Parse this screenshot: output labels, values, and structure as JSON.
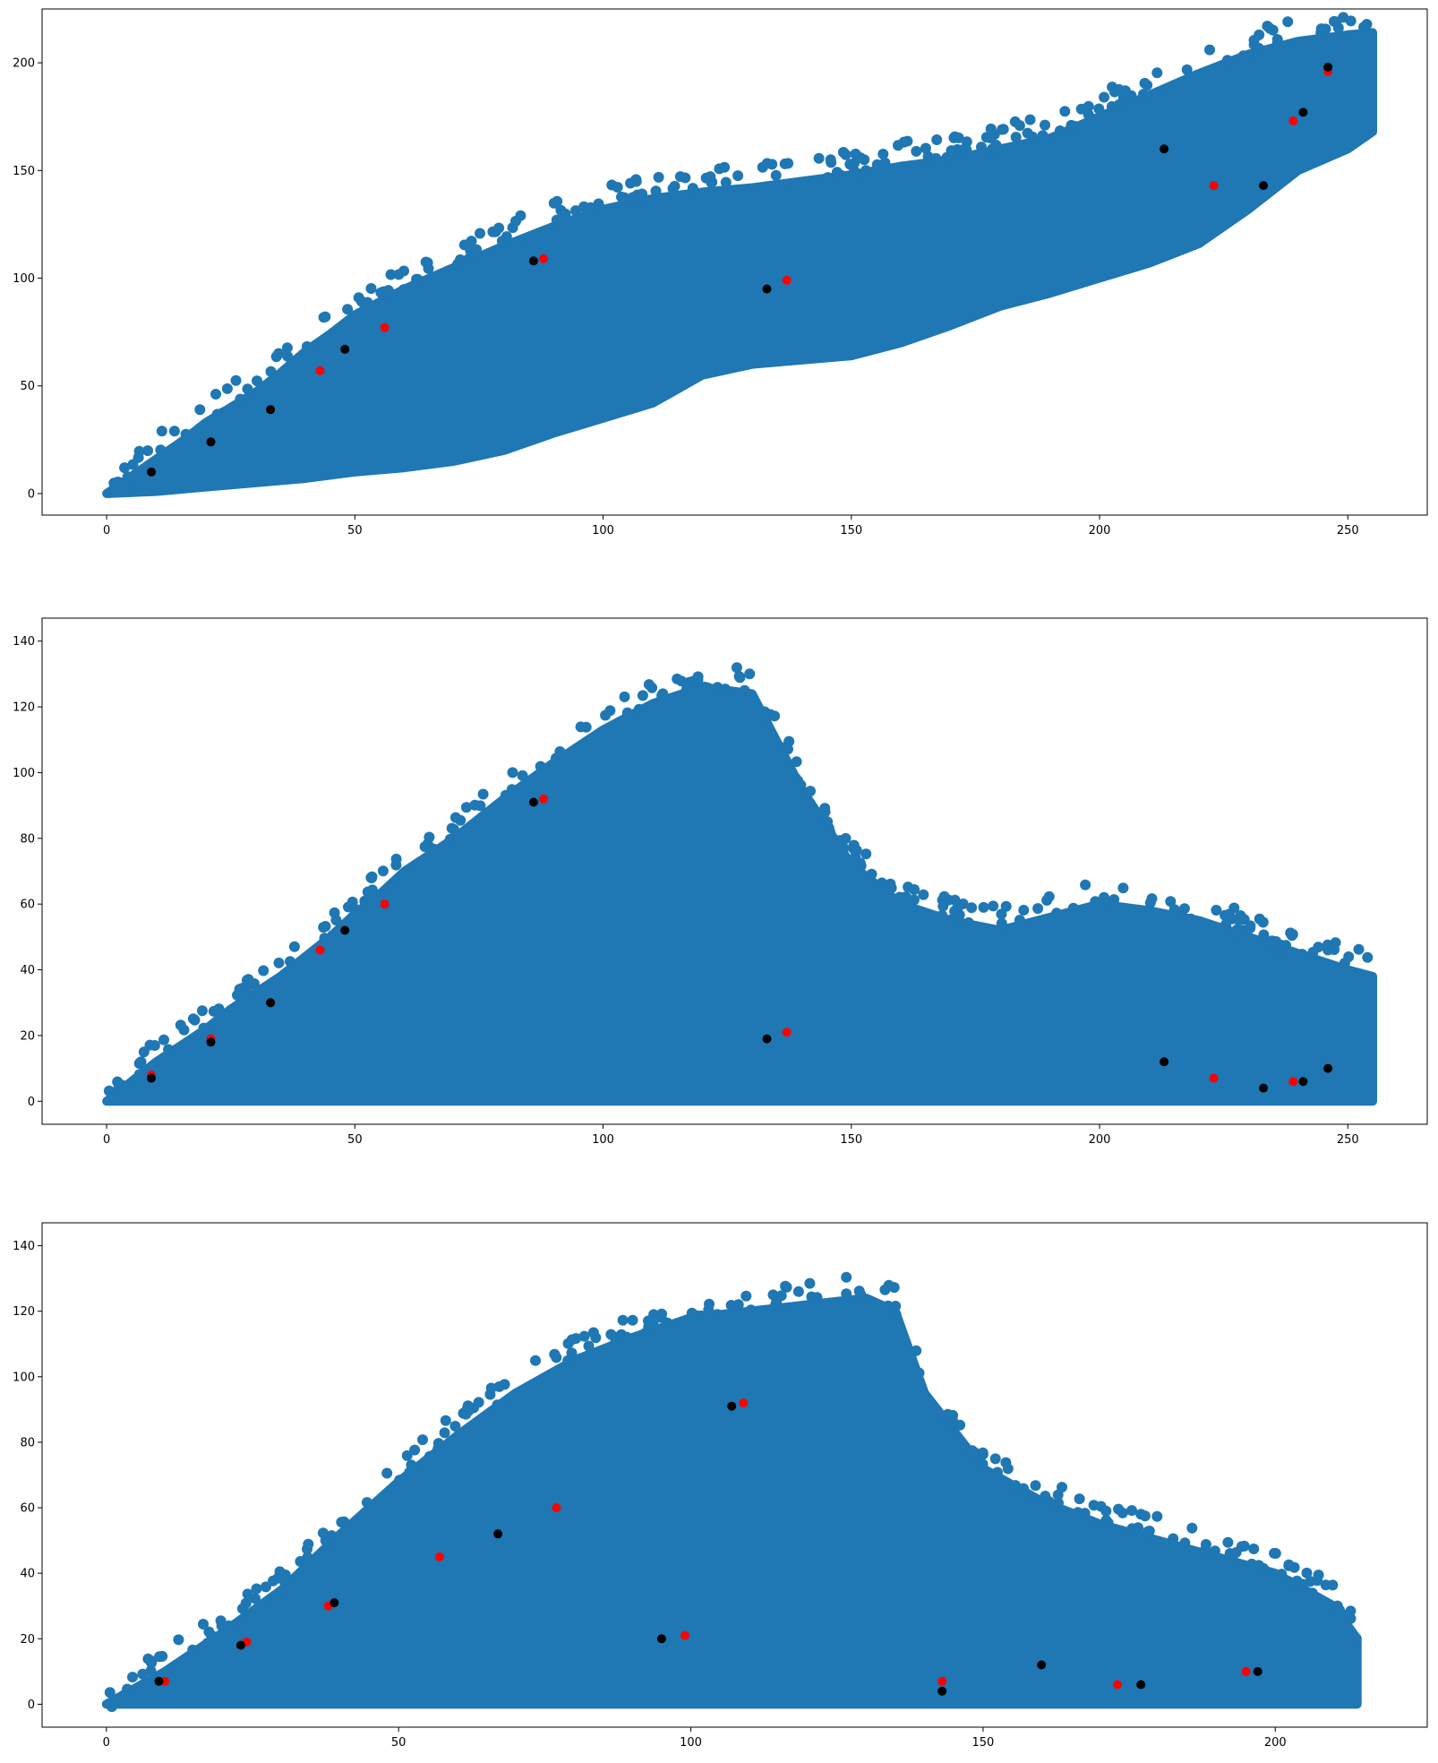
{
  "colors": {
    "cloud": "#1f77b4",
    "red_points": "#ff0000",
    "black_points": "#000000",
    "axes": "#000000",
    "background": "#ffffff"
  },
  "chart_data": [
    {
      "type": "scatter",
      "title": "",
      "xlabel": "",
      "ylabel": "",
      "xlim": [
        -13,
        266
      ],
      "ylim": [
        -10,
        225
      ],
      "xticks": [
        0,
        50,
        100,
        150,
        200,
        250
      ],
      "yticks": [
        0,
        50,
        100,
        150,
        200
      ],
      "grid": false,
      "cloud_envelope": {
        "upper": [
          [
            0,
            0
          ],
          [
            5,
            8
          ],
          [
            10,
            16
          ],
          [
            15,
            24
          ],
          [
            20,
            33
          ],
          [
            25,
            40
          ],
          [
            30,
            47
          ],
          [
            35,
            56
          ],
          [
            40,
            66
          ],
          [
            45,
            74
          ],
          [
            50,
            83
          ],
          [
            60,
            95
          ],
          [
            70,
            105
          ],
          [
            80,
            115
          ],
          [
            90,
            124
          ],
          [
            100,
            132
          ],
          [
            110,
            137
          ],
          [
            120,
            140
          ],
          [
            130,
            142
          ],
          [
            140,
            145
          ],
          [
            150,
            148
          ],
          [
            160,
            152
          ],
          [
            170,
            155
          ],
          [
            180,
            160
          ],
          [
            190,
            165
          ],
          [
            200,
            175
          ],
          [
            210,
            185
          ],
          [
            220,
            195
          ],
          [
            230,
            204
          ],
          [
            240,
            210
          ],
          [
            250,
            213
          ],
          [
            255,
            214
          ]
        ],
        "lower": [
          [
            255,
            168
          ],
          [
            250,
            160
          ],
          [
            240,
            150
          ],
          [
            230,
            132
          ],
          [
            220,
            116
          ],
          [
            210,
            107
          ],
          [
            200,
            100
          ],
          [
            190,
            93
          ],
          [
            180,
            87
          ],
          [
            170,
            78
          ],
          [
            160,
            70
          ],
          [
            150,
            64
          ],
          [
            140,
            62
          ],
          [
            130,
            60
          ],
          [
            120,
            55
          ],
          [
            110,
            42
          ],
          [
            100,
            35
          ],
          [
            90,
            28
          ],
          [
            80,
            20
          ],
          [
            70,
            15
          ],
          [
            60,
            12
          ],
          [
            50,
            10
          ],
          [
            40,
            7
          ],
          [
            30,
            5
          ],
          [
            20,
            3
          ],
          [
            10,
            1
          ],
          [
            0,
            0
          ]
        ]
      },
      "series": [
        {
          "color": "red",
          "points": [
            [
              9,
              10
            ],
            [
              21,
              24
            ],
            [
              33,
              39
            ],
            [
              43,
              57
            ],
            [
              56,
              77
            ],
            [
              88,
              109
            ],
            [
              137,
              99
            ],
            [
              223,
              143
            ],
            [
              239,
              173
            ],
            [
              246,
              196
            ]
          ]
        },
        {
          "color": "black",
          "points": [
            [
              9,
              10
            ],
            [
              21,
              24
            ],
            [
              33,
              39
            ],
            [
              48,
              67
            ],
            [
              86,
              108
            ],
            [
              133,
              95
            ],
            [
              213,
              160
            ],
            [
              233,
              143
            ],
            [
              241,
              177
            ],
            [
              246,
              198
            ]
          ]
        }
      ]
    },
    {
      "type": "scatter",
      "title": "",
      "xlabel": "",
      "ylabel": "",
      "xlim": [
        -13,
        266
      ],
      "ylim": [
        -7,
        147
      ],
      "xticks": [
        0,
        50,
        100,
        150,
        200,
        250
      ],
      "yticks": [
        0,
        20,
        40,
        60,
        80,
        100,
        120,
        140
      ],
      "grid": false,
      "cloud_envelope": {
        "upper": [
          [
            0,
            0
          ],
          [
            5,
            6
          ],
          [
            10,
            12
          ],
          [
            15,
            17
          ],
          [
            20,
            22
          ],
          [
            25,
            28
          ],
          [
            30,
            33
          ],
          [
            35,
            38
          ],
          [
            40,
            44
          ],
          [
            45,
            50
          ],
          [
            50,
            57
          ],
          [
            55,
            63
          ],
          [
            60,
            70
          ],
          [
            70,
            80
          ],
          [
            80,
            92
          ],
          [
            90,
            103
          ],
          [
            100,
            113
          ],
          [
            110,
            121
          ],
          [
            120,
            126
          ],
          [
            130,
            124
          ],
          [
            140,
            95
          ],
          [
            150,
            72
          ],
          [
            160,
            60
          ],
          [
            170,
            55
          ],
          [
            180,
            52
          ],
          [
            190,
            56
          ],
          [
            200,
            60
          ],
          [
            210,
            58
          ],
          [
            220,
            55
          ],
          [
            230,
            50
          ],
          [
            240,
            45
          ],
          [
            250,
            40
          ],
          [
            255,
            38
          ],
          [
            255,
            0
          ]
        ],
        "lower": [
          [
            0,
            0
          ]
        ]
      },
      "series": [
        {
          "color": "red",
          "points": [
            [
              9,
              8
            ],
            [
              21,
              19
            ],
            [
              33,
              30
            ],
            [
              43,
              46
            ],
            [
              56,
              60
            ],
            [
              88,
              92
            ],
            [
              137,
              21
            ],
            [
              223,
              7
            ],
            [
              239,
              6
            ],
            [
              246,
              10
            ]
          ]
        },
        {
          "color": "black",
          "points": [
            [
              9,
              7
            ],
            [
              21,
              18
            ],
            [
              33,
              30
            ],
            [
              48,
              52
            ],
            [
              86,
              91
            ],
            [
              133,
              19
            ],
            [
              213,
              12
            ],
            [
              233,
              4
            ],
            [
              241,
              6
            ],
            [
              246,
              10
            ]
          ]
        }
      ]
    },
    {
      "type": "scatter",
      "title": "",
      "xlabel": "",
      "ylabel": "",
      "xlim": [
        -11,
        226
      ],
      "ylim": [
        -7,
        147
      ],
      "xticks": [
        0,
        50,
        100,
        150,
        200
      ],
      "yticks": [
        0,
        20,
        40,
        60,
        80,
        100,
        120,
        140
      ],
      "grid": false,
      "cloud_envelope": {
        "upper": [
          [
            0,
            0
          ],
          [
            10,
            10
          ],
          [
            20,
            22
          ],
          [
            30,
            35
          ],
          [
            40,
            52
          ],
          [
            50,
            68
          ],
          [
            60,
            82
          ],
          [
            70,
            95
          ],
          [
            80,
            105
          ],
          [
            90,
            112
          ],
          [
            100,
            118
          ],
          [
            110,
            120
          ],
          [
            120,
            122
          ],
          [
            130,
            124
          ],
          [
            135,
            120
          ],
          [
            140,
            95
          ],
          [
            150,
            72
          ],
          [
            160,
            62
          ],
          [
            170,
            55
          ],
          [
            180,
            50
          ],
          [
            190,
            45
          ],
          [
            200,
            40
          ],
          [
            210,
            30
          ],
          [
            214,
            20
          ],
          [
            214,
            0
          ]
        ],
        "lower": [
          [
            0,
            0
          ]
        ]
      },
      "series": [
        {
          "color": "red",
          "points": [
            [
              10,
              7
            ],
            [
              24,
              19
            ],
            [
              38,
              30
            ],
            [
              57,
              45
            ],
            [
              77,
              60
            ],
            [
              109,
              92
            ],
            [
              99,
              21
            ],
            [
              143,
              7
            ],
            [
              173,
              6
            ],
            [
              195,
              10
            ]
          ]
        },
        {
          "color": "black",
          "points": [
            [
              9,
              7
            ],
            [
              23,
              18
            ],
            [
              39,
              31
            ],
            [
              67,
              52
            ],
            [
              107,
              91
            ],
            [
              95,
              20
            ],
            [
              160,
              12
            ],
            [
              143,
              4
            ],
            [
              177,
              6
            ],
            [
              197,
              10
            ]
          ]
        }
      ]
    }
  ]
}
